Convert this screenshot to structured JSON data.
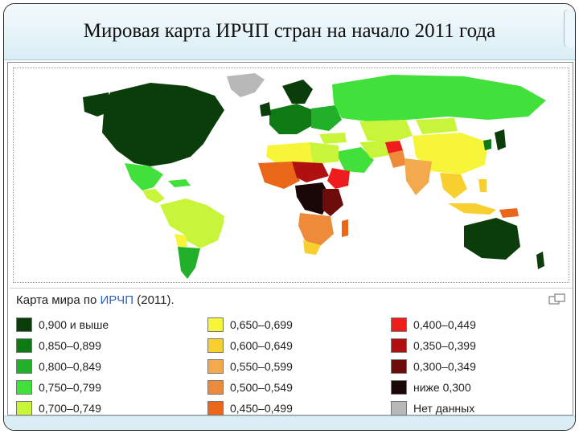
{
  "slide": {
    "title": "Мировая карта ИРЧП стран на начало 2011 года"
  },
  "legend": {
    "title_prefix": "Карта мира по ",
    "title_link": "ИРЧП",
    "title_suffix": " (2011).",
    "items": [
      {
        "label": "0,900 и выше",
        "color": "#0b3d0b"
      },
      {
        "label": "0,850–0,899",
        "color": "#0f7a14"
      },
      {
        "label": "0,800–0,849",
        "color": "#22b02a"
      },
      {
        "label": "0,750–0,799",
        "color": "#42e03a"
      },
      {
        "label": "0,700–0,749",
        "color": "#c8f53a"
      },
      {
        "label": "0,650–0,699",
        "color": "#f7f53a"
      },
      {
        "label": "0,600–0,649",
        "color": "#f7cf2e"
      },
      {
        "label": "0,550–0,599",
        "color": "#f3aa4c"
      },
      {
        "label": "0,500–0,549",
        "color": "#ee8b3a"
      },
      {
        "label": "0,450–0,499",
        "color": "#ea6618"
      },
      {
        "label": "0,400–0,449",
        "color": "#ee1c1c"
      },
      {
        "label": "0,350–0,399",
        "color": "#b01010"
      },
      {
        "label": "0,300–0,349",
        "color": "#6e0c0c"
      },
      {
        "label": "ниже 0,300",
        "color": "#1a0808"
      },
      {
        "label": "Нет данных",
        "color": "#b8b8b8"
      }
    ]
  },
  "theme": {
    "ocean": "#ffffff",
    "accent_band": "#d9eef5"
  }
}
